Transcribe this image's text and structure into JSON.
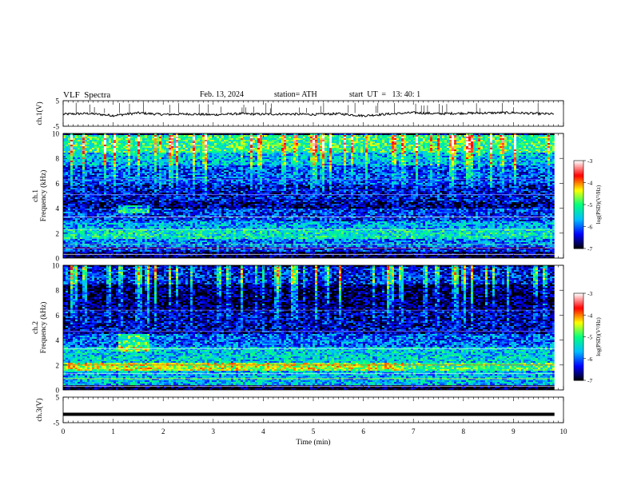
{
  "header": {
    "title": "VLF  Spectra",
    "date": "Feb. 13, 2024",
    "station": "station= ATH",
    "start": "start  UT  =   13: 40: 1"
  },
  "chart_data": [
    {
      "type": "line",
      "name": "ch1-waveform",
      "ylabel": "ch.1(V)",
      "ylim": [
        -5,
        5
      ],
      "yticks": [
        "5",
        "-5"
      ],
      "x": [
        0.0,
        0.5,
        1.0,
        1.5,
        2.0,
        2.5,
        3.0,
        3.5,
        4.0,
        4.5,
        5.0,
        5.5,
        6.0,
        6.5,
        7.0,
        7.5,
        8.0,
        8.5,
        9.0,
        9.5,
        9.82
      ],
      "y": [
        -0.3,
        0.0,
        -0.8,
        0.2,
        -0.4,
        -0.2,
        -0.5,
        -0.1,
        -0.3,
        -0.2,
        -0.4,
        -0.1,
        -0.9,
        -0.2,
        0.3,
        -0.1,
        0.1,
        0.2,
        0.3,
        -0.1,
        -0.2
      ]
    },
    {
      "type": "heatmap",
      "name": "ch1-spectrogram",
      "ylabel": "ch.1\nFrequency (kHz)",
      "ylim": [
        0,
        10
      ],
      "yticks": [
        "0",
        "2",
        "4",
        "6",
        "8",
        "10"
      ],
      "xlim": [
        0,
        10
      ],
      "data_xmax": 9.82,
      "colorbar": {
        "label": "log(PSD)(V²/Hz)",
        "range": [
          -7,
          -3
        ],
        "ticks": [
          "-3",
          "-4",
          "-5",
          "-6",
          "-7"
        ]
      },
      "bands_khz": [
        {
          "freq": [
            0.0,
            0.6
          ],
          "level": -6.8
        },
        {
          "freq": [
            0.6,
            1.0
          ],
          "level": -6.2
        },
        {
          "freq": [
            1.0,
            1.6
          ],
          "level": -5.9
        },
        {
          "freq": [
            1.6,
            2.4
          ],
          "level": -5.3
        },
        {
          "freq": [
            2.4,
            3.0
          ],
          "level": -5.7
        },
        {
          "freq": [
            3.0,
            4.0
          ],
          "level": -6.2
        },
        {
          "freq": [
            4.0,
            4.6
          ],
          "level": -6.6
        },
        {
          "freq": [
            4.6,
            6.0
          ],
          "level": -6.4
        },
        {
          "freq": [
            6.0,
            7.5
          ],
          "level": -6.1
        },
        {
          "freq": [
            7.5,
            8.5
          ],
          "level": -5.6
        },
        {
          "freq": [
            8.5,
            10.0
          ],
          "level": -5.0
        }
      ]
    },
    {
      "type": "heatmap",
      "name": "ch2-spectrogram",
      "ylabel": "ch.2\nFrequency (kHz)",
      "ylim": [
        0,
        10
      ],
      "yticks": [
        "0",
        "2",
        "4",
        "6",
        "8",
        "10"
      ],
      "xlim": [
        0,
        10
      ],
      "data_xmax": 9.82,
      "colorbar": {
        "label": "log(PSD)(V²/Hz)",
        "range": [
          -7,
          -3
        ],
        "ticks": [
          "-3",
          "-4",
          "-5",
          "-6",
          "-7"
        ]
      },
      "bands_khz": [
        {
          "freq": [
            0.0,
            0.5
          ],
          "level": -6.9
        },
        {
          "freq": [
            0.5,
            1.6
          ],
          "level": -5.6
        },
        {
          "freq": [
            1.6,
            2.3
          ],
          "level": -4.5
        },
        {
          "freq": [
            2.3,
            3.5
          ],
          "level": -5.5
        },
        {
          "freq": [
            3.5,
            4.6
          ],
          "level": -6.0
        },
        {
          "freq": [
            4.6,
            6.5
          ],
          "level": -6.5
        },
        {
          "freq": [
            6.5,
            8.5
          ],
          "level": -6.8
        },
        {
          "freq": [
            8.5,
            10.0
          ],
          "level": -6.3
        }
      ]
    },
    {
      "type": "line",
      "name": "ch3-waveform",
      "ylabel": "ch.3(V)",
      "ylim": [
        -5,
        5
      ],
      "yticks": [
        "5",
        "-5"
      ],
      "x": [
        0.0,
        9.82
      ],
      "y": [
        -1.7,
        -1.7
      ],
      "xlabel": "Time (min)",
      "xlim": [
        0,
        10
      ],
      "xticks": [
        "0",
        "1",
        "2",
        "3",
        "4",
        "5",
        "6",
        "7",
        "8",
        "9",
        "10"
      ]
    }
  ],
  "colors": {
    "colormap": [
      "#000000",
      "#0000ff",
      "#00bfff",
      "#00ff80",
      "#ffff00",
      "#ff0000",
      "#ffffff"
    ],
    "trace": "#000000",
    "frame": "#000000"
  }
}
